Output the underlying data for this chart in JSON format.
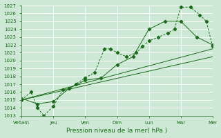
{
  "xlabel": "Pression niveau de la mer( hPa )",
  "background_color": "#cde8d4",
  "grid_color": "#b8dfc4",
  "line_color": "#1a6b1a",
  "ylim": [
    1013,
    1027
  ],
  "yticks": [
    1013,
    1014,
    1015,
    1016,
    1017,
    1018,
    1019,
    1020,
    1021,
    1022,
    1023,
    1024,
    1025,
    1026,
    1027
  ],
  "x_labels": [
    "Ve6am",
    "Jeu",
    "Ven",
    "Dim",
    "Lun",
    "Mar",
    "Mer"
  ],
  "x_positions": [
    0,
    1,
    2,
    3,
    4,
    5,
    6
  ],
  "xlim": [
    0,
    6
  ],
  "series1_x": [
    0.0,
    0.3,
    0.5,
    0.7,
    1.0,
    1.3,
    1.5,
    1.7,
    2.0,
    2.3,
    2.6,
    2.8,
    3.0,
    3.3,
    3.6,
    3.8,
    4.0,
    4.3,
    4.6,
    4.8,
    5.0,
    5.3,
    5.6,
    5.8,
    6.0
  ],
  "series1_y": [
    1015.0,
    1016.0,
    1014.0,
    1013.0,
    1014.2,
    1016.3,
    1016.5,
    1017.0,
    1017.8,
    1018.5,
    1021.5,
    1021.5,
    1021.0,
    1020.5,
    1021.0,
    1021.8,
    1022.5,
    1023.0,
    1023.5,
    1024.0,
    1026.8,
    1026.8,
    1025.8,
    1025.0,
    1021.8
  ],
  "series2_x": [
    0.0,
    0.5,
    1.0,
    1.5,
    2.0,
    2.5,
    3.0,
    3.5,
    4.0,
    4.5,
    5.0,
    5.5,
    6.0
  ],
  "series2_y": [
    1015.2,
    1014.5,
    1014.8,
    1016.5,
    1017.5,
    1017.8,
    1019.5,
    1020.5,
    1024.0,
    1025.0,
    1025.0,
    1023.0,
    1022.0
  ],
  "series3_x": [
    0.0,
    6.0
  ],
  "series3_y": [
    1015.0,
    1021.5
  ],
  "series4_x": [
    0.0,
    6.0
  ],
  "series4_y": [
    1015.0,
    1020.5
  ],
  "marker": "D",
  "marker_size": 2.2,
  "lw": 0.7
}
